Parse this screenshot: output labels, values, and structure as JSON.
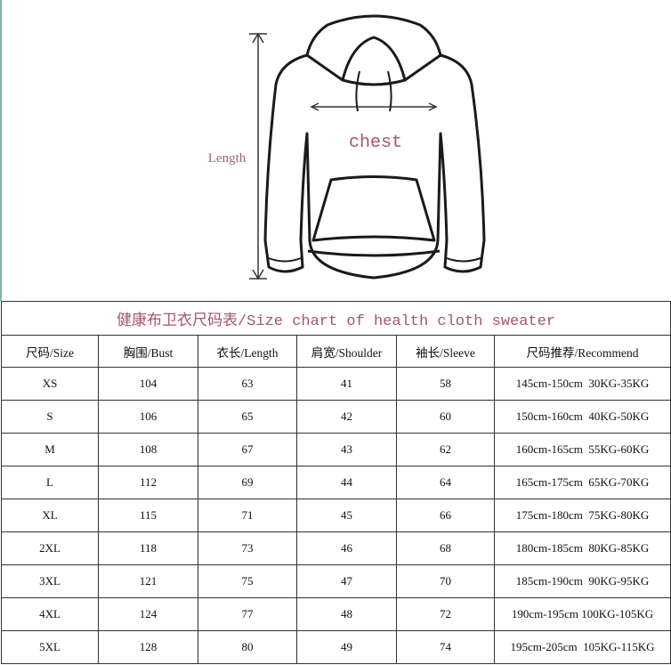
{
  "figure": {
    "length_label": "Length",
    "chest_label": "chest"
  },
  "table": {
    "title": "健康布卫衣尺码表/Size chart of health cloth sweater",
    "header": [
      "尺码/Size",
      "胸围/Bust",
      "衣长/Length",
      "肩宽/Shoulder",
      "袖长/Sleeve",
      "尺码推荐/Recommend"
    ],
    "rows": [
      [
        "XS",
        104,
        63,
        41,
        58,
        "145cm-150cm  30KG-35KG"
      ],
      [
        "S",
        106,
        65,
        42,
        60,
        "150cm-160cm  40KG-50KG"
      ],
      [
        "M",
        108,
        67,
        43,
        62,
        "160cm-165cm  55KG-60KG"
      ],
      [
        "L",
        112,
        69,
        44,
        64,
        "165cm-175cm  65KG-70KG"
      ],
      [
        "XL",
        115,
        71,
        45,
        66,
        "175cm-180cm  75KG-80KG"
      ],
      [
        "2XL",
        118,
        73,
        46,
        68,
        "180cm-185cm  80KG-85KG"
      ],
      [
        "3XL",
        121,
        75,
        47,
        70,
        "185cm-190cm  90KG-95KG"
      ],
      [
        "4XL",
        124,
        77,
        48,
        72,
        "190cm-195cm 100KG-105KG"
      ],
      [
        "5XL",
        128,
        80,
        49,
        74,
        "195cm-205cm  105KG-115KG"
      ]
    ]
  }
}
